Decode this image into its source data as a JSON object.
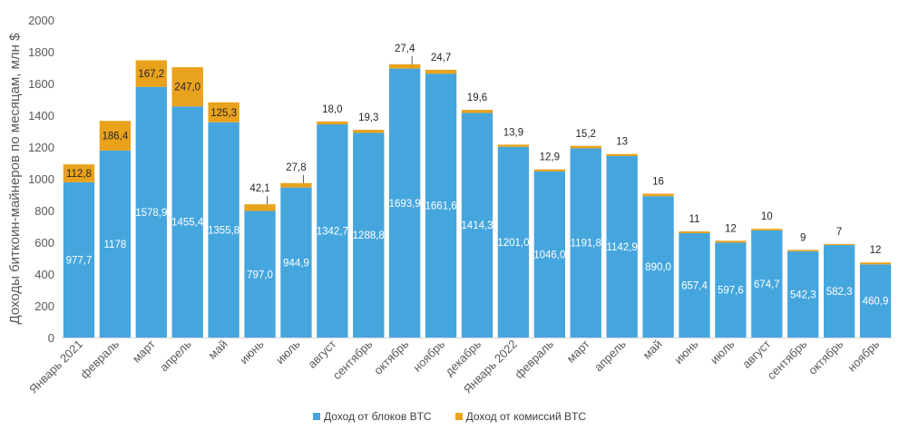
{
  "chart_data": {
    "type": "bar",
    "stacked": true,
    "ylabel": "Доходы биткоин-майнеров по месяцам, млн $",
    "ylim": [
      0,
      2000
    ],
    "yticks": [
      "0",
      "200",
      "400",
      "600",
      "800",
      "1000",
      "1200",
      "1400",
      "1600",
      "1800",
      "2000"
    ],
    "grid": false,
    "legend_position": "bottom",
    "categories": [
      "Январь 2021",
      "февраль",
      "март",
      "апрель",
      "май",
      "июнь",
      "июль",
      "август",
      "сентябрь",
      "октябрь",
      "ноябрь",
      "декабрь",
      "Январь 2022",
      "февраль",
      "март",
      "апрель",
      "май",
      "июнь",
      "июль",
      "август",
      "сентябрь",
      "октябрь",
      "ноябрь"
    ],
    "series": [
      {
        "name": "Доход от блоков BTC",
        "color": "#45A6DE",
        "values": [
          977.7,
          1178,
          1578.9,
          1455.4,
          1355.8,
          797.0,
          944.9,
          1342.7,
          1288.8,
          1693.9,
          1661.6,
          1414.3,
          1201.0,
          1046.0,
          1191.8,
          1142.9,
          890.0,
          657.4,
          597.6,
          674.7,
          542.3,
          582.3,
          460.9
        ],
        "labels": [
          "977,7",
          "1178",
          "1578,9",
          "1455,4",
          "1355,8",
          "797,0",
          "944,9",
          "1342,7",
          "1288,8",
          "1693,9",
          "1661,6",
          "1414,3",
          "1201,0",
          "1046,0",
          "1191,8",
          "1142,9",
          "890,0",
          "657,4",
          "597,6",
          "674,7",
          "542,3",
          "582,3",
          "460,9"
        ]
      },
      {
        "name": "Доход от комиссий BTC",
        "color": "#E9A21C",
        "values": [
          112.8,
          186.4,
          167.2,
          247.0,
          125.3,
          42.1,
          27.8,
          18.0,
          19.3,
          27.4,
          24.7,
          19.6,
          13.9,
          12.9,
          15.2,
          13,
          16,
          11,
          12,
          10,
          9,
          7,
          12
        ],
        "labels": [
          "112,8",
          "186,4",
          "167,2",
          "247,0",
          "125,3",
          "42,1",
          "27,8",
          "18,0",
          "19,3",
          "27,4",
          "24,7",
          "19,6",
          "13,9",
          "12,9",
          "15,2",
          "13",
          "16",
          "11",
          "12",
          "10",
          "9",
          "7",
          "12"
        ]
      }
    ]
  }
}
